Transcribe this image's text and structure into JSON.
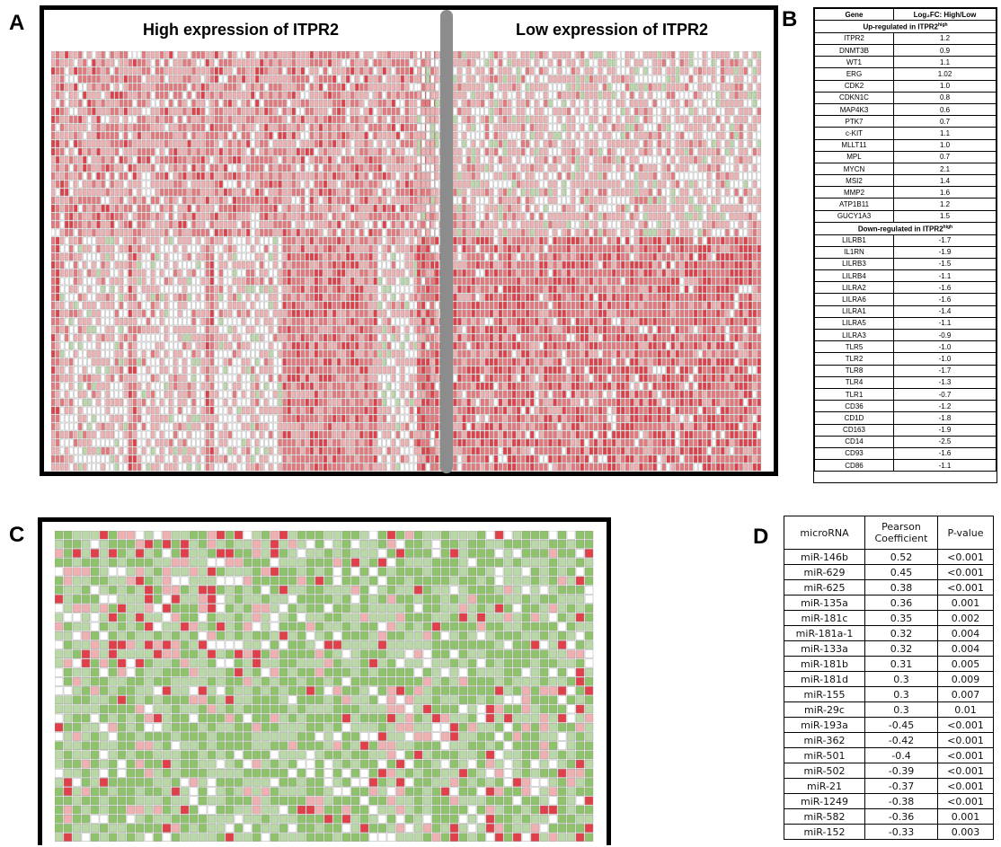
{
  "panels": {
    "a": "A",
    "b": "B",
    "c": "C",
    "d": "D"
  },
  "panel_a": {
    "title_high": "High expression of ITPR2",
    "title_low": "Low expression of ITPR2",
    "colors": {
      "red_strong": "#e0404a",
      "red_mid": "#e5787c",
      "red_light": "#efb0b2",
      "white": "#ffffff",
      "green_light": "#b9d7a7",
      "green": "#8ec36b",
      "grid": "#9a9a9a"
    }
  },
  "panel_b": {
    "header_gene": "Gene",
    "header_fc": "Log₂FC: High/Low",
    "up_section": "Up-regulated in  ITPR2",
    "up_sup": "high",
    "down_section": "Down-regulated in ITPR2",
    "down_sup": "high",
    "up_rows": [
      {
        "gene": "ITPR2",
        "fc": "1.2"
      },
      {
        "gene": "DNMT3B",
        "fc": "0.9"
      },
      {
        "gene": "WT1",
        "fc": "1.1"
      },
      {
        "gene": "ERG",
        "fc": "1.02"
      },
      {
        "gene": "CDK2",
        "fc": "1.0"
      },
      {
        "gene": "CDKN1C",
        "fc": "0.8"
      },
      {
        "gene": "MAP4K3",
        "fc": "0.6"
      },
      {
        "gene": "PTK7",
        "fc": "0.7"
      },
      {
        "gene": "c-KIT",
        "fc": "1.1"
      },
      {
        "gene": "MLLT11",
        "fc": "1.0"
      },
      {
        "gene": "MPL",
        "fc": "0.7"
      },
      {
        "gene": "MYCN",
        "fc": "2.1"
      },
      {
        "gene": "MSI2",
        "fc": "1.4"
      },
      {
        "gene": "MMP2",
        "fc": "1.6"
      },
      {
        "gene": "ATP1B11",
        "fc": "1.2"
      },
      {
        "gene": "GUCY1A3",
        "fc": "1.5"
      }
    ],
    "down_rows": [
      {
        "gene": "LILRB1",
        "fc": "-1.7"
      },
      {
        "gene": "IL1RN",
        "fc": "-1.9"
      },
      {
        "gene": "LILRB3",
        "fc": "-1.5"
      },
      {
        "gene": "LILRB4",
        "fc": "-1.1"
      },
      {
        "gene": "LILRA2",
        "fc": "-1.6"
      },
      {
        "gene": "LILRA6",
        "fc": "-1.6"
      },
      {
        "gene": "LILRA1",
        "fc": "-1.4"
      },
      {
        "gene": "LILRA5",
        "fc": "-1.1"
      },
      {
        "gene": "LILRA3",
        "fc": "-0.9"
      },
      {
        "gene": "TLR5",
        "fc": "-1.0"
      },
      {
        "gene": "TLR2",
        "fc": "-1.0"
      },
      {
        "gene": "TLR8",
        "fc": "-1.7"
      },
      {
        "gene": "TLR4",
        "fc": "-1.3"
      },
      {
        "gene": "TLR1",
        "fc": "-0.7"
      },
      {
        "gene": "CD36",
        "fc": "-1.2"
      },
      {
        "gene": "CD1D",
        "fc": "-1.8"
      },
      {
        "gene": "CD163",
        "fc": "-1.9"
      },
      {
        "gene": "CD14",
        "fc": "-2.5"
      },
      {
        "gene": "CD93",
        "fc": "-1.6"
      },
      {
        "gene": "CD86",
        "fc": "-1.1"
      }
    ]
  },
  "panel_d": {
    "headers": [
      "microRNA",
      "Pearson Coefficient",
      "P-value"
    ],
    "rows": [
      {
        "mirna": "miR-146b",
        "coef": "0.52",
        "p": "<0.001"
      },
      {
        "mirna": "miR-629",
        "coef": "0.45",
        "p": "<0.001"
      },
      {
        "mirna": "miR-625",
        "coef": "0.38",
        "p": "<0.001"
      },
      {
        "mirna": "miR-135a",
        "coef": "0.36",
        "p": "0.001"
      },
      {
        "mirna": "miR-181c",
        "coef": "0.35",
        "p": "0.002"
      },
      {
        "mirna": "miR-181a-1",
        "coef": "0.32",
        "p": "0.004"
      },
      {
        "mirna": "miR-133a",
        "coef": "0.32",
        "p": "0.004"
      },
      {
        "mirna": "miR-181b",
        "coef": "0.31",
        "p": "0.005"
      },
      {
        "mirna": "miR-181d",
        "coef": "0.3",
        "p": "0.009"
      },
      {
        "mirna": "miR-155",
        "coef": "0.3",
        "p": "0.007"
      },
      {
        "mirna": "miR-29c",
        "coef": "0.3",
        "p": "0.01"
      },
      {
        "mirna": "miR-193a",
        "coef": "-0.45",
        "p": "<0.001"
      },
      {
        "mirna": "miR-362",
        "coef": "-0.42",
        "p": "<0.001"
      },
      {
        "mirna": "miR-501",
        "coef": "-0.4",
        "p": "<0.001"
      },
      {
        "mirna": "miR-502",
        "coef": "-0.39",
        "p": "<0.001"
      },
      {
        "mirna": "miR-21",
        "coef": "-0.37",
        "p": "<0.001"
      },
      {
        "mirna": "miR-1249",
        "coef": "-0.38",
        "p": "<0.001"
      },
      {
        "mirna": "miR-582",
        "coef": "-0.36",
        "p": "0.001"
      },
      {
        "mirna": "miR-152",
        "coef": "-0.33",
        "p": "0.003"
      }
    ]
  }
}
